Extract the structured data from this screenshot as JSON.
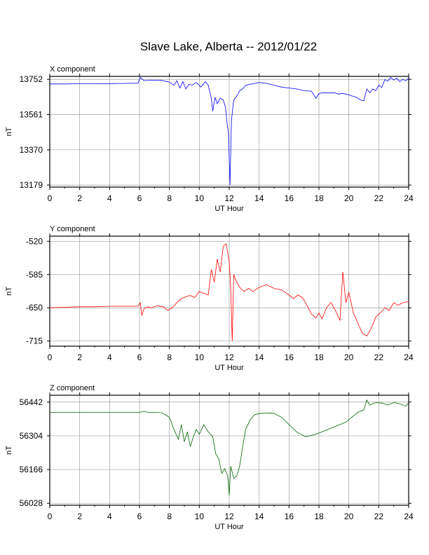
{
  "title": "Slave Lake, Alberta -- 2012/01/22",
  "chart_data": [
    {
      "type": "line",
      "title": "X component",
      "xlabel": "UT Hour",
      "ylabel": "nT",
      "xlim": [
        0,
        24
      ],
      "ylim": [
        13168,
        13768
      ],
      "x_ticks": [
        "0",
        "2",
        "4",
        "6",
        "8",
        "10",
        "12",
        "14",
        "16",
        "18",
        "20",
        "22",
        "24"
      ],
      "y_ticks": [
        "13752",
        "13561",
        "13370",
        "13179"
      ],
      "y_tick_values": [
        13752,
        13561,
        13370,
        13179
      ],
      "grid": true,
      "color": "#0000ff",
      "series": [
        {
          "x": [
            0,
            1,
            2,
            3,
            4,
            5,
            5.9,
            6.05,
            6.3,
            6.6,
            7,
            7.5,
            8,
            8.3,
            8.5,
            8.7,
            8.9,
            9.1,
            9.3,
            9.5,
            9.8,
            10.1,
            10.4,
            10.6,
            10.8,
            10.9,
            11.05,
            11.2,
            11.4,
            11.6,
            11.75,
            11.85,
            11.95,
            12.05,
            12.15,
            12.3,
            12.5,
            12.7,
            12.9,
            13.1,
            13.4,
            13.7,
            14,
            14.5,
            15,
            15.5,
            16,
            16.5,
            17,
            17.5,
            17.8,
            18,
            18.3,
            18.7,
            19,
            19.3,
            19.6,
            19.9,
            20.2,
            20.5,
            20.8,
            21,
            21.2,
            21.4,
            21.6,
            21.8,
            22,
            22.2,
            22.4,
            22.6,
            22.8,
            23,
            23.2,
            23.4,
            23.6,
            23.8,
            24
          ],
          "y": [
            13727,
            13727,
            13728,
            13728,
            13729,
            13730,
            13731,
            13762,
            13745,
            13747,
            13747,
            13746,
            13737,
            13720,
            13745,
            13705,
            13740,
            13700,
            13725,
            13720,
            13735,
            13710,
            13740,
            13720,
            13650,
            13580,
            13655,
            13620,
            13650,
            13640,
            13600,
            13520,
            13460,
            13179,
            13530,
            13640,
            13660,
            13690,
            13700,
            13720,
            13725,
            13730,
            13735,
            13730,
            13720,
            13710,
            13705,
            13700,
            13690,
            13688,
            13650,
            13675,
            13680,
            13678,
            13680,
            13672,
            13676,
            13670,
            13662,
            13655,
            13640,
            13635,
            13700,
            13680,
            13700,
            13690,
            13720,
            13708,
            13750,
            13742,
            13762,
            13748,
            13758,
            13740,
            13752,
            13744,
            13758
          ]
        }
      ]
    },
    {
      "type": "line",
      "title": "Y component",
      "xlabel": "UT Hour",
      "ylabel": "nT",
      "xlim": [
        0,
        24
      ],
      "ylim": [
        -725,
        -510
      ],
      "x_ticks": [
        "0",
        "2",
        "4",
        "6",
        "8",
        "10",
        "12",
        "14",
        "16",
        "18",
        "20",
        "22",
        "24"
      ],
      "y_ticks": [
        "-520",
        "-585",
        "-650",
        "-715"
      ],
      "y_tick_values": [
        -520,
        -585,
        -650,
        -715
      ],
      "grid": true,
      "color": "#ff0000",
      "series": [
        {
          "x": [
            0,
            1,
            2,
            3,
            4,
            5,
            5.9,
            6.05,
            6.15,
            6.3,
            6.5,
            6.8,
            7.2,
            7.6,
            7.9,
            8.2,
            8.5,
            8.8,
            9.1,
            9.4,
            9.7,
            10,
            10.3,
            10.6,
            10.8,
            11,
            11.2,
            11.4,
            11.6,
            11.8,
            12,
            12.1,
            12.2,
            12.3,
            12.5,
            12.7,
            13,
            13.3,
            13.6,
            14,
            14.5,
            15,
            15.5,
            16,
            16.3,
            16.6,
            16.9,
            17.2,
            17.5,
            17.8,
            18,
            18.2,
            18.5,
            18.8,
            19.1,
            19.4,
            19.6,
            19.8,
            20,
            20.3,
            20.6,
            20.9,
            21.2,
            21.5,
            21.8,
            22.1,
            22.4,
            22.7,
            23,
            23.3,
            23.6,
            23.9,
            24
          ],
          "y": [
            -650,
            -649,
            -648,
            -648,
            -647,
            -647,
            -647,
            -640,
            -665,
            -652,
            -648,
            -650,
            -646,
            -648,
            -655,
            -650,
            -640,
            -632,
            -628,
            -626,
            -630,
            -618,
            -622,
            -625,
            -575,
            -600,
            -555,
            -580,
            -530,
            -525,
            -560,
            -610,
            -715,
            -585,
            -600,
            -610,
            -618,
            -612,
            -618,
            -610,
            -605,
            -612,
            -615,
            -625,
            -632,
            -625,
            -630,
            -645,
            -662,
            -670,
            -660,
            -672,
            -650,
            -640,
            -655,
            -675,
            -580,
            -640,
            -620,
            -660,
            -680,
            -700,
            -705,
            -690,
            -668,
            -660,
            -650,
            -655,
            -640,
            -645,
            -640,
            -638,
            -640
          ]
        }
      ]
    },
    {
      "type": "line",
      "title": "Z component",
      "xlabel": "UT Hour",
      "ylabel": "nT",
      "xlim": [
        0,
        24
      ],
      "ylim": [
        56020,
        56470
      ],
      "x_ticks": [
        "0",
        "2",
        "4",
        "6",
        "8",
        "10",
        "12",
        "14",
        "16",
        "18",
        "20",
        "22",
        "24"
      ],
      "y_ticks": [
        "56442",
        "56304",
        "56166",
        "56028"
      ],
      "y_tick_values": [
        56442,
        56304,
        56166,
        56028
      ],
      "grid": true,
      "color": "#006400",
      "series": [
        {
          "x": [
            0,
            1,
            2,
            3,
            4,
            5,
            6,
            6.3,
            6.6,
            7,
            7.5,
            8,
            8.3,
            8.6,
            8.8,
            9,
            9.2,
            9.4,
            9.6,
            9.8,
            10,
            10.3,
            10.6,
            10.9,
            11.1,
            11.3,
            11.5,
            11.7,
            11.9,
            12,
            12.1,
            12.3,
            12.5,
            12.7,
            12.9,
            13.1,
            13.4,
            13.7,
            14,
            14.5,
            15,
            15.5,
            16,
            16.5,
            16.8,
            17.1,
            17.4,
            17.8,
            18.2,
            18.6,
            19,
            19.4,
            19.8,
            20.2,
            20.6,
            21,
            21.2,
            21.4,
            21.8,
            22.2,
            22.6,
            23,
            23.4,
            23.8,
            24
          ],
          "y": [
            56400,
            56400,
            56400,
            56400,
            56400,
            56400,
            56400,
            56404,
            56400,
            56400,
            56398,
            56380,
            56330,
            56290,
            56350,
            56280,
            56320,
            56260,
            56300,
            56330,
            56310,
            56350,
            56320,
            56300,
            56230,
            56210,
            56150,
            56170,
            56140,
            56060,
            56180,
            56130,
            56140,
            56180,
            56260,
            56330,
            56370,
            56390,
            56395,
            56398,
            56395,
            56380,
            56350,
            56320,
            56310,
            56300,
            56305,
            56310,
            56320,
            56330,
            56340,
            56350,
            56360,
            56380,
            56400,
            56410,
            56450,
            56430,
            56440,
            56438,
            56430,
            56440,
            56435,
            56425,
            56440
          ]
        }
      ]
    }
  ]
}
